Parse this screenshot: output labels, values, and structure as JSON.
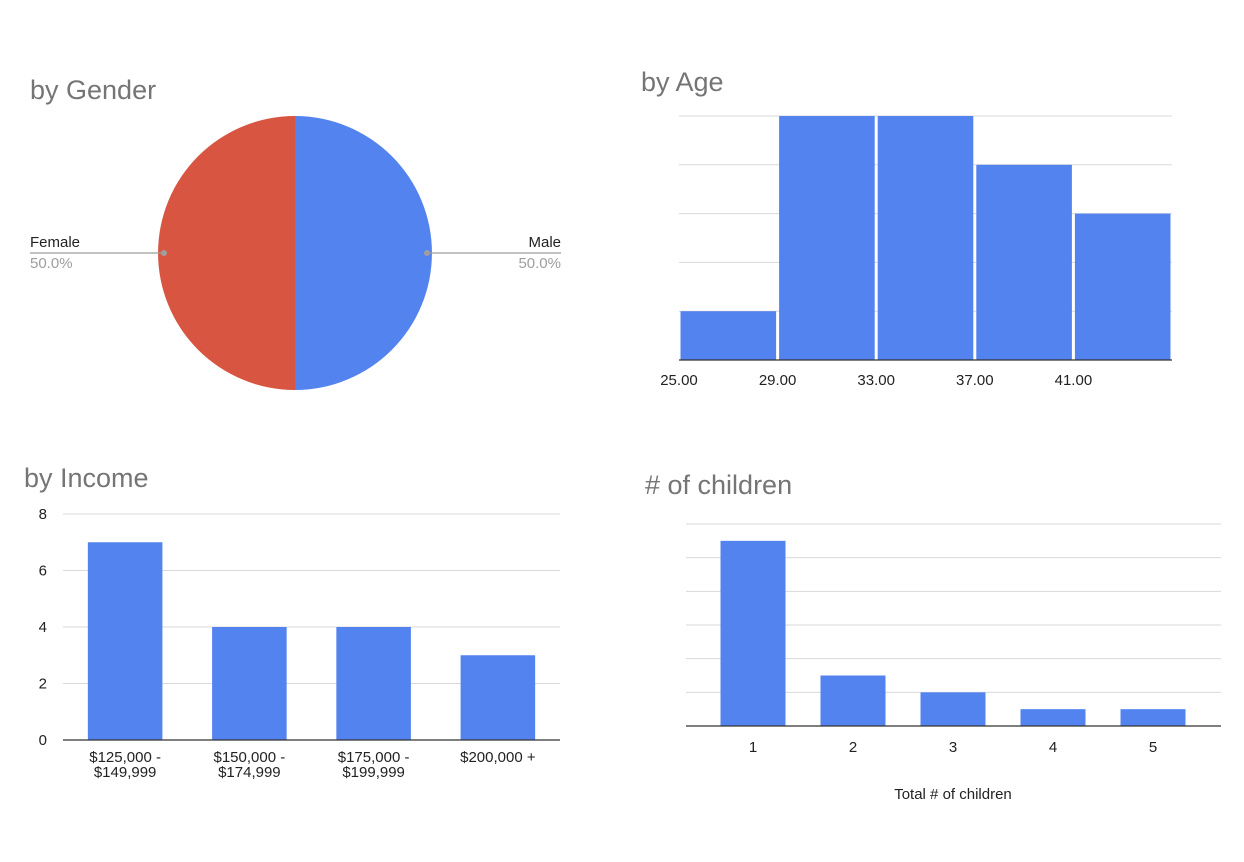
{
  "colors": {
    "blue": "#5383ef",
    "red": "#d75541",
    "title": "#757575",
    "pct": "#9e9e9e",
    "grid": "#d9d9d9"
  },
  "chart_data": [
    {
      "id": "gender",
      "type": "pie",
      "title": "by Gender",
      "slices": [
        {
          "label": "Male",
          "value": 50.0,
          "pct_label": "50.0%",
          "color": "#5383ef"
        },
        {
          "label": "Female",
          "value": 50.0,
          "pct_label": "50.0%",
          "color": "#d75541"
        }
      ]
    },
    {
      "id": "age",
      "type": "bar",
      "subtype": "histogram",
      "title": "by Age",
      "bins": [
        {
          "x0": 25,
          "x1": 29,
          "count": 1
        },
        {
          "x0": 29,
          "x1": 33,
          "count": 5
        },
        {
          "x0": 33,
          "x1": 37,
          "count": 5
        },
        {
          "x0": 37,
          "x1": 41,
          "count": 4
        },
        {
          "x0": 41,
          "x1": 45,
          "count": 3
        }
      ],
      "xticks": [
        "25.00",
        "29.00",
        "33.00",
        "37.00",
        "41.00"
      ],
      "xlim": [
        25,
        45
      ],
      "ylim": [
        0,
        5
      ],
      "grid_count": 5,
      "grid": true,
      "yticks_shown": false
    },
    {
      "id": "income",
      "type": "bar",
      "title": "by Income",
      "categories": [
        [
          "$125,000 -",
          "$149,999"
        ],
        [
          "$150,000 -",
          "$174,999"
        ],
        [
          "$175,000 -",
          "$199,999"
        ],
        [
          "$200,000 +"
        ]
      ],
      "values": [
        7,
        4,
        4,
        3
      ],
      "ylim": [
        0,
        8
      ],
      "yticks": [
        "0",
        "2",
        "4",
        "6",
        "8"
      ],
      "grid": true
    },
    {
      "id": "children",
      "type": "bar",
      "title": "# of children",
      "categories": [
        "1",
        "2",
        "3",
        "4",
        "5"
      ],
      "values": [
        11,
        3,
        2,
        1,
        1
      ],
      "ylim": [
        0,
        12
      ],
      "grid_count": 6,
      "grid": true,
      "yticks_shown": false,
      "xlabel": "Total # of children"
    }
  ]
}
